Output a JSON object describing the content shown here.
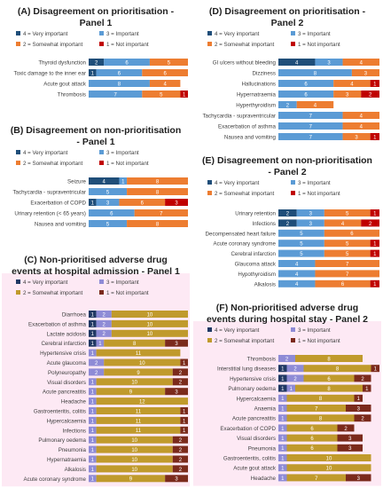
{
  "colors": {
    "c4": "#1f4e79",
    "c3": "#5b9bd5",
    "c2": "#ed7d31",
    "c1": "#c00000",
    "c4_pink": "#203864",
    "c3_pink": "#8e8bd6",
    "c2_pink": "#c09a2c",
    "c1_pink": "#7b2a1c",
    "panel_bg_pink": "#fde9f4",
    "title_color": "#1f1f1f",
    "label_color": "#404040"
  },
  "legend_labels": {
    "l4": "4 = Very important",
    "l3": "3 = Important",
    "l2": "2 = Somewhat important",
    "l1": "1 = Not important"
  },
  "chart_data": [
    {
      "id": "A",
      "type": "bar",
      "orientation": "horizontal",
      "stacked": true,
      "title": "(A) Disagreement on prioritisation - Panel 1",
      "title_lines": [
        "(A) Disagreement on prioritisation -",
        "Panel 1"
      ],
      "categories": [
        "Thyroid dysfunction",
        "Toxic damage to the inner ear",
        "Acute gout attack",
        "Thrombosis"
      ],
      "series": [
        {
          "name": "4 = Very important",
          "values": [
            2,
            1,
            0,
            0
          ]
        },
        {
          "name": "3 = Important",
          "values": [
            6,
            6,
            8,
            7
          ]
        },
        {
          "name": "2 = Somewhat important",
          "values": [
            5,
            6,
            4,
            5
          ]
        },
        {
          "name": "1 = Not important",
          "values": [
            0,
            0,
            0,
            1
          ]
        }
      ],
      "legend": "top"
    },
    {
      "id": "B",
      "type": "bar",
      "orientation": "horizontal",
      "stacked": true,
      "title": "(B) Disagreement on non-prioritisation - Panel 1",
      "title_lines": [
        "(B) Disagreement on non-prioritisation",
        "- Panel 1"
      ],
      "categories": [
        "Seizure",
        "Tachycardia - supraventricular",
        "Exacerbation of COPD",
        "Urinary retention (< 65 years)",
        "Nausea and vomiting"
      ],
      "series": [
        {
          "name": "4 = Very important",
          "values": [
            4,
            0,
            1,
            0,
            0
          ]
        },
        {
          "name": "3 = Important",
          "values": [
            1,
            5,
            3,
            6,
            5
          ]
        },
        {
          "name": "2 = Somewhat important",
          "values": [
            8,
            8,
            6,
            7,
            8
          ]
        },
        {
          "name": "1 = Not important",
          "values": [
            0,
            0,
            3,
            0,
            0
          ]
        }
      ],
      "legend": "top"
    },
    {
      "id": "C",
      "type": "bar",
      "orientation": "horizontal",
      "stacked": true,
      "title": "(C) Non-prioritised adverse drug events at hospital admission - Panel 1",
      "title_lines": [
        "(C) Non-prioritised adverse drug",
        "events at hospital admission - Panel 1"
      ],
      "categories": [
        "Diarrhoea",
        "Exacerbation of asthma",
        "Lactate acidosis",
        "Cerebral infarction",
        "Hypertensive crisis",
        "Acute glaucoma",
        "Polyneuropathy",
        "Visual disorders",
        "Acute pancreatitis",
        "Headache",
        "Gastroenteritis, colitis",
        "Hypercalcaemia",
        "Infections",
        "Pulmonary oedema",
        "Pneumonia",
        "Hypernatraemia",
        "Alkalosis",
        "Acute coronary syndrome"
      ],
      "series": [
        {
          "name": "4 = Very important",
          "values": [
            1,
            1,
            1,
            1,
            0,
            0,
            0,
            0,
            0,
            0,
            0,
            0,
            0,
            0,
            0,
            0,
            0,
            0
          ]
        },
        {
          "name": "3 = Important",
          "values": [
            2,
            2,
            2,
            1,
            1,
            2,
            2,
            1,
            1,
            1,
            1,
            1,
            1,
            1,
            1,
            1,
            1,
            1
          ]
        },
        {
          "name": "2 = Somewhat important",
          "values": [
            10,
            10,
            10,
            8,
            11,
            10,
            9,
            10,
            9,
            12,
            11,
            11,
            11,
            10,
            10,
            10,
            10,
            9
          ]
        },
        {
          "name": "1 = Not important",
          "values": [
            0,
            0,
            0,
            3,
            0,
            1,
            2,
            2,
            3,
            0,
            1,
            1,
            1,
            2,
            2,
            2,
            2,
            3
          ]
        }
      ],
      "legend": "top"
    },
    {
      "id": "D",
      "type": "bar",
      "orientation": "horizontal",
      "stacked": true,
      "title": "(D) Disagreement on prioritisation - Panel 2",
      "title_lines": [
        "(D) Disagreement on prioritisation -",
        "Panel 2"
      ],
      "categories": [
        "GI ulcers without bleeding",
        "Dizziness",
        "Hallucinations",
        "Hypernatraemia",
        "Hyperthyroidism",
        "Tachycardia - supraventricular",
        "Exacerbation of asthma",
        "Nausea and vomiting"
      ],
      "series": [
        {
          "name": "4 = Very important",
          "values": [
            4,
            0,
            0,
            0,
            0,
            0,
            0,
            0
          ]
        },
        {
          "name": "3 = Important",
          "values": [
            3,
            8,
            6,
            6,
            2,
            7,
            7,
            7
          ]
        },
        {
          "name": "2 = Somewhat important",
          "values": [
            4,
            3,
            4,
            3,
            4,
            4,
            4,
            3
          ]
        },
        {
          "name": "1 = Not important",
          "values": [
            0,
            0,
            1,
            2,
            0,
            0,
            0,
            1
          ]
        }
      ],
      "legend": "top"
    },
    {
      "id": "E",
      "type": "bar",
      "orientation": "horizontal",
      "stacked": true,
      "title": "(E) Disagreement on non-prioritisation - Panel 2",
      "title_lines": [
        "(E) Disagreement on non-prioritisation",
        "- Panel 2"
      ],
      "categories": [
        "Urinary retention",
        "Infections",
        "Decompensated heart failure",
        "Acute coronary syndrome",
        "Cerebral infarction",
        "Glaucoma attack",
        "Hypothyroidism",
        "Alkalosis"
      ],
      "series": [
        {
          "name": "4 = Very important",
          "values": [
            2,
            2,
            0,
            0,
            0,
            0,
            0,
            0
          ]
        },
        {
          "name": "3 = Important",
          "values": [
            3,
            3,
            5,
            5,
            5,
            4,
            4,
            4
          ]
        },
        {
          "name": "2 = Somewhat important",
          "values": [
            5,
            4,
            6,
            5,
            5,
            7,
            7,
            6
          ]
        },
        {
          "name": "1 = Not important",
          "values": [
            1,
            2,
            0,
            1,
            1,
            0,
            0,
            1
          ]
        }
      ],
      "legend": "top"
    },
    {
      "id": "F",
      "type": "bar",
      "orientation": "horizontal",
      "stacked": true,
      "title": "(F) Non-prioritised adverse drug events during hospital stay - Panel 2",
      "title_lines": [
        "(F) Non-prioritised adverse drug",
        "events during hospital stay - Panel 2"
      ],
      "categories": [
        "Thrombosis",
        "Interstitial lung diseases",
        "Hypertensive crisis",
        "Pulmonary oedema",
        "Hypercalcaemia",
        "Anaemia",
        "Acute pancreatitis",
        "Exacerbation of COPD",
        "Visual disorders",
        "Pneumonia",
        "Gastroenteritis, colitis",
        "Acute gout attack",
        "Headache"
      ],
      "series": [
        {
          "name": "4 = Very important",
          "values": [
            0,
            1,
            1,
            1,
            0,
            0,
            0,
            0,
            0,
            0,
            0,
            0,
            0
          ]
        },
        {
          "name": "3 = Important",
          "values": [
            2,
            2,
            2,
            1,
            1,
            1,
            1,
            1,
            1,
            1,
            1,
            1,
            1
          ]
        },
        {
          "name": "2 = Somewhat important",
          "values": [
            8,
            8,
            6,
            8,
            8,
            7,
            8,
            6,
            6,
            6,
            10,
            10,
            7
          ]
        },
        {
          "name": "1 = Not important",
          "values": [
            0,
            1,
            2,
            1,
            1,
            3,
            2,
            2,
            3,
            3,
            0,
            0,
            3
          ]
        }
      ],
      "legend": "top"
    }
  ]
}
